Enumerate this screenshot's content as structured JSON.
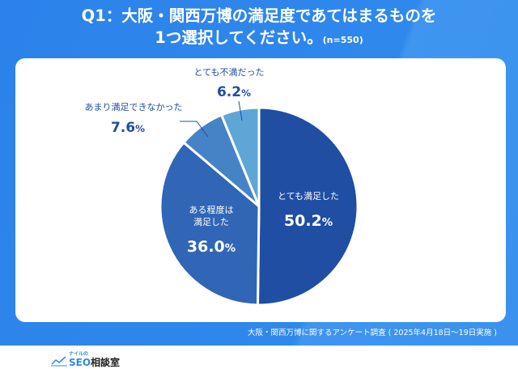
{
  "title": {
    "line1": "Q1：大阪・関西万博の満足度であてはまるものを",
    "line2": "1つ選択してください。",
    "n": "(n=550)"
  },
  "footer": "大阪・関西万博に関するアンケート調査 ( 2025年4月18日～19日実施 )",
  "logo": {
    "small": "ナイルの",
    "seo": "SEO",
    "jp": "相談室"
  },
  "chart_data": {
    "type": "pie",
    "title": "Q1：大阪・関西万博の満足度であてはまるものを1つ選択してください。(n=550)",
    "start": "12 o'clock, clockwise",
    "slices": [
      {
        "label": "とても満足した",
        "value": 50.2,
        "display": "50.2",
        "color": "#1f4ea3",
        "label_position": "inside",
        "label_lines": [
          "とても満足した"
        ]
      },
      {
        "label": "ある程度は満足した",
        "value": 36.0,
        "display": "36.0",
        "color": "#3066b5",
        "label_position": "inside",
        "label_lines": [
          "ある程度は",
          "満足した"
        ]
      },
      {
        "label": "あまり満足できなかった",
        "value": 7.6,
        "display": "7.6",
        "color": "#4682c6",
        "label_position": "outside",
        "label_lines": [
          "あまり満足できなかった"
        ]
      },
      {
        "label": "とても不満だった",
        "value": 6.2,
        "display": "6.2",
        "color": "#5ea6d6",
        "label_position": "outside",
        "label_lines": [
          "とても不満だった"
        ]
      }
    ],
    "unit": "%",
    "label_color": "#1f4ea3"
  }
}
